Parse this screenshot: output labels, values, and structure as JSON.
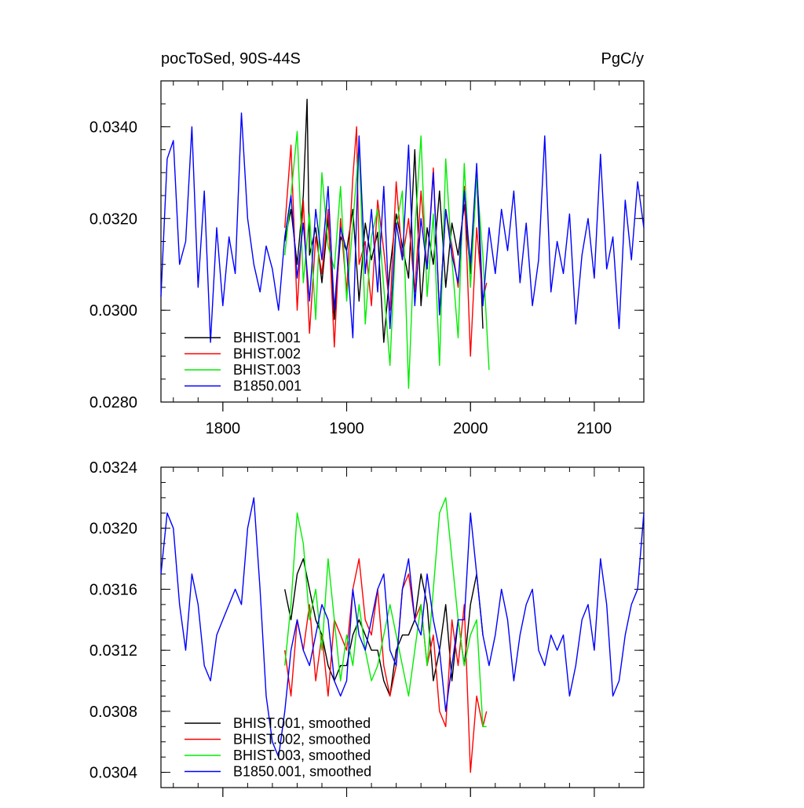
{
  "chart_data": [
    {
      "type": "line",
      "title_left": "pocToSed, 90S-44S",
      "title_right": "PgC/y",
      "xlabel": "",
      "ylabel": "",
      "xlim": [
        1750,
        2140
      ],
      "ylim": [
        0.028,
        0.035
      ],
      "xticks": [
        1800,
        1900,
        2000,
        2100
      ],
      "xtick_labels": [
        "1800",
        "1900",
        "2000",
        "2100"
      ],
      "yticks": [
        0.028,
        0.03,
        0.032,
        0.034
      ],
      "ytick_labels": [
        "0.0280",
        "0.0300",
        "0.0320",
        "0.0340"
      ],
      "grid": false,
      "legend_position": "bottom-left",
      "series": [
        {
          "name": "BHIST.001",
          "color": "#000000",
          "x_start": 1850,
          "x_end": 2010,
          "x": [
            1850,
            1855,
            1860,
            1865,
            1868,
            1870,
            1875,
            1880,
            1885,
            1890,
            1895,
            1900,
            1905,
            1910,
            1915,
            1920,
            1925,
            1930,
            1935,
            1940,
            1945,
            1950,
            1955,
            1960,
            1965,
            1970,
            1975,
            1980,
            1985,
            1990,
            1995,
            2000,
            2005,
            2010
          ],
          "values": [
            0.0315,
            0.0322,
            0.031,
            0.0325,
            0.0346,
            0.0312,
            0.0318,
            0.0306,
            0.032,
            0.0298,
            0.0316,
            0.0313,
            0.0322,
            0.0302,
            0.0319,
            0.0311,
            0.0317,
            0.0293,
            0.0309,
            0.0321,
            0.0314,
            0.0307,
            0.0335,
            0.0301,
            0.0318,
            0.031,
            0.0326,
            0.0305,
            0.0319,
            0.0312,
            0.0323,
            0.0308,
            0.0331,
            0.0296
          ]
        },
        {
          "name": "BHIST.002",
          "color": "#ff0000",
          "x_start": 1850,
          "x_end": 2013,
          "x": [
            1850,
            1855,
            1860,
            1865,
            1870,
            1875,
            1880,
            1885,
            1890,
            1895,
            1900,
            1905,
            1908,
            1910,
            1915,
            1920,
            1925,
            1930,
            1935,
            1940,
            1945,
            1950,
            1955,
            1960,
            1965,
            1970,
            1975,
            1980,
            1985,
            1990,
            1995,
            2000,
            2005,
            2010,
            2013
          ],
          "values": [
            0.0318,
            0.0336,
            0.03,
            0.0324,
            0.0295,
            0.0316,
            0.0308,
            0.0322,
            0.0292,
            0.032,
            0.0304,
            0.0329,
            0.034,
            0.031,
            0.0315,
            0.0301,
            0.0324,
            0.0313,
            0.03,
            0.0328,
            0.0311,
            0.032,
            0.0304,
            0.0326,
            0.0309,
            0.0331,
            0.0299,
            0.0322,
            0.0314,
            0.0305,
            0.0327,
            0.029,
            0.0318,
            0.0302,
            0.0306
          ]
        },
        {
          "name": "BHIST.003",
          "color": "#00ee00",
          "x_start": 1850,
          "x_end": 2015,
          "x": [
            1850,
            1855,
            1860,
            1865,
            1870,
            1875,
            1880,
            1885,
            1890,
            1895,
            1900,
            1905,
            1910,
            1915,
            1920,
            1925,
            1930,
            1935,
            1940,
            1945,
            1950,
            1955,
            1960,
            1965,
            1970,
            1975,
            1980,
            1985,
            1990,
            1995,
            2000,
            2005,
            2010,
            2015
          ],
          "values": [
            0.0312,
            0.0325,
            0.0339,
            0.0306,
            0.0321,
            0.0298,
            0.033,
            0.0314,
            0.0309,
            0.0327,
            0.0302,
            0.0319,
            0.0336,
            0.0297,
            0.0316,
            0.0322,
            0.0305,
            0.0288,
            0.0318,
            0.0326,
            0.0283,
            0.0317,
            0.0338,
            0.0303,
            0.0321,
            0.0288,
            0.0333,
            0.0311,
            0.0294,
            0.0332,
            0.0305,
            0.0329,
            0.0312,
            0.0287
          ]
        },
        {
          "name": "B1850.001",
          "color": "#0000ff",
          "x_start": 1750,
          "x_end": 2140,
          "x": [
            1750,
            1755,
            1760,
            1765,
            1770,
            1775,
            1780,
            1785,
            1790,
            1795,
            1800,
            1805,
            1810,
            1815,
            1820,
            1825,
            1830,
            1835,
            1840,
            1845,
            1850,
            1855,
            1860,
            1865,
            1870,
            1875,
            1880,
            1885,
            1890,
            1895,
            1900,
            1905,
            1910,
            1915,
            1920,
            1925,
            1930,
            1935,
            1940,
            1945,
            1950,
            1955,
            1960,
            1965,
            1970,
            1975,
            1980,
            1985,
            1990,
            1995,
            2000,
            2005,
            2010,
            2015,
            2020,
            2025,
            2030,
            2035,
            2040,
            2045,
            2050,
            2055,
            2060,
            2065,
            2070,
            2075,
            2080,
            2085,
            2090,
            2095,
            2100,
            2105,
            2110,
            2115,
            2120,
            2125,
            2130,
            2135,
            2140
          ],
          "values": [
            0.0303,
            0.0333,
            0.0337,
            0.031,
            0.0315,
            0.034,
            0.0305,
            0.0326,
            0.0293,
            0.0318,
            0.0301,
            0.0316,
            0.0308,
            0.0343,
            0.032,
            0.031,
            0.0304,
            0.0314,
            0.0309,
            0.03,
            0.0316,
            0.0325,
            0.0307,
            0.0319,
            0.0302,
            0.0322,
            0.0311,
            0.0327,
            0.03,
            0.0318,
            0.0313,
            0.0294,
            0.0338,
            0.0308,
            0.0322,
            0.0304,
            0.0327,
            0.0296,
            0.0319,
            0.0311,
            0.0336,
            0.0301,
            0.032,
            0.0309,
            0.033,
            0.0299,
            0.0322,
            0.0312,
            0.0306,
            0.0326,
            0.031,
            0.0332,
            0.0301,
            0.0318,
            0.0308,
            0.0322,
            0.0313,
            0.0326,
            0.0306,
            0.0319,
            0.0301,
            0.0311,
            0.0338,
            0.0304,
            0.0315,
            0.0308,
            0.0321,
            0.0297,
            0.0312,
            0.032,
            0.0307,
            0.0334,
            0.0309,
            0.0316,
            0.0296,
            0.0324,
            0.0311,
            0.0328,
            0.0318
          ]
        }
      ]
    },
    {
      "type": "line",
      "title_left": "",
      "title_right": "",
      "xlabel": "",
      "ylabel": "",
      "xlim": [
        1750,
        2140
      ],
      "ylim": [
        0.0303,
        0.0324
      ],
      "xticks": [
        1800,
        1900,
        2000,
        2100
      ],
      "xtick_labels": [],
      "yticks": [
        0.0304,
        0.0308,
        0.0312,
        0.0316,
        0.032,
        0.0324
      ],
      "ytick_labels": [
        "0.0304",
        "0.0308",
        "0.0312",
        "0.0316",
        "0.0320",
        "0.0324"
      ],
      "grid": false,
      "legend_position": "bottom-left",
      "series": [
        {
          "name": "BHIST.001, smoothed",
          "color": "#000000",
          "x": [
            1850,
            1855,
            1860,
            1865,
            1870,
            1875,
            1880,
            1885,
            1890,
            1895,
            1900,
            1905,
            1910,
            1915,
            1920,
            1925,
            1930,
            1935,
            1940,
            1945,
            1950,
            1955,
            1960,
            1965,
            1970,
            1975,
            1980,
            1985,
            1990,
            1995,
            2000,
            2005,
            2010
          ],
          "values": [
            0.0316,
            0.0314,
            0.0317,
            0.0318,
            0.0316,
            0.0314,
            0.0313,
            0.0311,
            0.031,
            0.0311,
            0.0311,
            0.0313,
            0.0314,
            0.0313,
            0.0312,
            0.0312,
            0.031,
            0.0309,
            0.0312,
            0.0313,
            0.0313,
            0.0314,
            0.0317,
            0.0315,
            0.031,
            0.0312,
            0.0315,
            0.031,
            0.0314,
            0.0311,
            0.0315,
            0.0317,
            0.0313
          ]
        },
        {
          "name": "BHIST.002, smoothed",
          "color": "#ff0000",
          "x": [
            1850,
            1855,
            1860,
            1865,
            1870,
            1875,
            1880,
            1885,
            1890,
            1895,
            1900,
            1905,
            1910,
            1915,
            1920,
            1925,
            1930,
            1935,
            1940,
            1945,
            1950,
            1955,
            1960,
            1965,
            1970,
            1975,
            1980,
            1985,
            1990,
            1995,
            2000,
            2005,
            2010,
            2013
          ],
          "values": [
            0.0312,
            0.0309,
            0.0314,
            0.0312,
            0.0315,
            0.031,
            0.0313,
            0.0309,
            0.0314,
            0.0313,
            0.0312,
            0.0316,
            0.0318,
            0.0314,
            0.0313,
            0.0316,
            0.0311,
            0.0309,
            0.0311,
            0.0316,
            0.0317,
            0.0314,
            0.0315,
            0.0311,
            0.0313,
            0.0308,
            0.0307,
            0.0314,
            0.0311,
            0.0315,
            0.0304,
            0.0309,
            0.0307,
            0.0308
          ]
        },
        {
          "name": "BHIST.003, smoothed",
          "color": "#00ee00",
          "x": [
            1850,
            1855,
            1860,
            1865,
            1870,
            1875,
            1880,
            1885,
            1890,
            1895,
            1900,
            1905,
            1910,
            1915,
            1920,
            1925,
            1930,
            1935,
            1940,
            1945,
            1950,
            1955,
            1960,
            1965,
            1970,
            1975,
            1980,
            1985,
            1990,
            1995,
            2000,
            2005,
            2010,
            2013
          ],
          "values": [
            0.0311,
            0.0315,
            0.0321,
            0.0319,
            0.0314,
            0.0316,
            0.0312,
            0.0318,
            0.0314,
            0.031,
            0.0313,
            0.0311,
            0.0315,
            0.0312,
            0.031,
            0.0311,
            0.0313,
            0.0315,
            0.0313,
            0.0311,
            0.0309,
            0.0312,
            0.0315,
            0.0311,
            0.0316,
            0.0321,
            0.0322,
            0.0318,
            0.0314,
            0.0311,
            0.0313,
            0.0314,
            0.0307,
            0.0307
          ]
        },
        {
          "name": "B1850.001, smoothed",
          "color": "#0000ff",
          "x": [
            1750,
            1755,
            1760,
            1765,
            1770,
            1775,
            1780,
            1785,
            1790,
            1795,
            1800,
            1805,
            1810,
            1815,
            1820,
            1825,
            1830,
            1835,
            1840,
            1845,
            1850,
            1855,
            1860,
            1865,
            1870,
            1875,
            1880,
            1885,
            1890,
            1895,
            1900,
            1905,
            1910,
            1915,
            1920,
            1925,
            1930,
            1935,
            1940,
            1945,
            1950,
            1955,
            1960,
            1965,
            1970,
            1975,
            1980,
            1985,
            1990,
            1995,
            2000,
            2005,
            2010,
            2015,
            2020,
            2025,
            2030,
            2035,
            2040,
            2045,
            2050,
            2055,
            2060,
            2065,
            2070,
            2075,
            2080,
            2085,
            2090,
            2095,
            2100,
            2105,
            2110,
            2115,
            2120,
            2125,
            2130,
            2135,
            2140
          ],
          "values": [
            0.0317,
            0.0321,
            0.032,
            0.0315,
            0.0312,
            0.0317,
            0.0315,
            0.0311,
            0.031,
            0.0313,
            0.0314,
            0.0315,
            0.0316,
            0.0315,
            0.032,
            0.0322,
            0.0316,
            0.0309,
            0.0306,
            0.0305,
            0.0308,
            0.0312,
            0.0314,
            0.0312,
            0.0311,
            0.0313,
            0.0315,
            0.0314,
            0.031,
            0.0309,
            0.031,
            0.0316,
            0.0313,
            0.0312,
            0.0314,
            0.0316,
            0.0317,
            0.0312,
            0.0311,
            0.0316,
            0.0318,
            0.0314,
            0.0313,
            0.0317,
            0.0314,
            0.0312,
            0.0308,
            0.0311,
            0.0314,
            0.0314,
            0.0321,
            0.0317,
            0.0313,
            0.0311,
            0.0313,
            0.0316,
            0.0314,
            0.031,
            0.0313,
            0.0315,
            0.0316,
            0.0312,
            0.0311,
            0.0313,
            0.0312,
            0.0313,
            0.0309,
            0.0311,
            0.0314,
            0.0315,
            0.0312,
            0.0318,
            0.0315,
            0.0309,
            0.031,
            0.0313,
            0.0315,
            0.0316,
            0.0321
          ]
        }
      ]
    }
  ]
}
